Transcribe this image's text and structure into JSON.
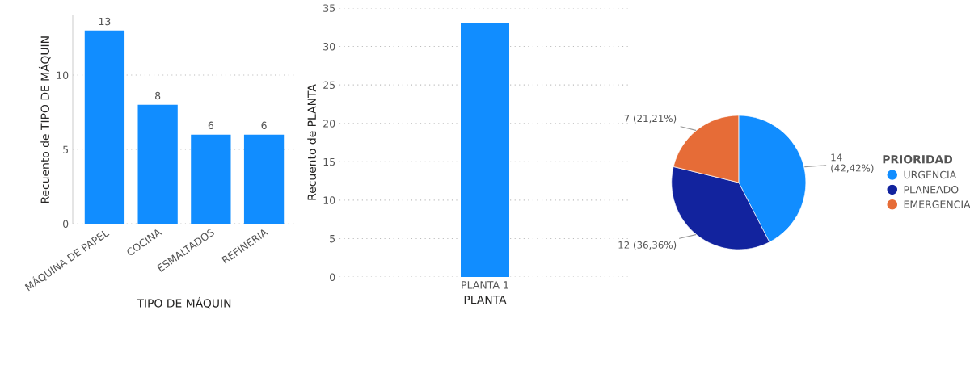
{
  "chart_data": [
    {
      "type": "bar",
      "xlabel": "TIPO DE MÁQUIN",
      "ylabel": "Recuento de TIPO DE MÁQUIN",
      "categories": [
        "MÁQUINA DE PAPEL",
        "COCINA",
        "ESMALTADOS",
        "REFINERIA"
      ],
      "values": [
        13,
        8,
        6,
        6
      ],
      "color": "#118dff",
      "ylim": [
        0,
        14
      ],
      "yticks": [
        0,
        5,
        10
      ],
      "grid": "y",
      "data_labels": true
    },
    {
      "type": "bar",
      "xlabel": "PLANTA",
      "ylabel": "Recuento de PLANTA",
      "categories": [
        "PLANTA 1"
      ],
      "values": [
        33
      ],
      "color": "#118dff",
      "ylim": [
        0,
        35
      ],
      "yticks": [
        0,
        5,
        10,
        15,
        20,
        25,
        30,
        35
      ],
      "grid": "y"
    },
    {
      "type": "pie",
      "legend_title": "PRIORIDAD",
      "legend": "right",
      "categories": [
        "URGENCIA",
        "PLANEADO",
        "EMERGENCIA"
      ],
      "values": [
        14,
        12,
        7
      ],
      "colors": [
        "#118dff",
        "#12239e",
        "#e66c37"
      ],
      "value_labels": [
        "14\n(42,42%)",
        "12 (36,36%)",
        "7 (21,21%)"
      ]
    }
  ]
}
